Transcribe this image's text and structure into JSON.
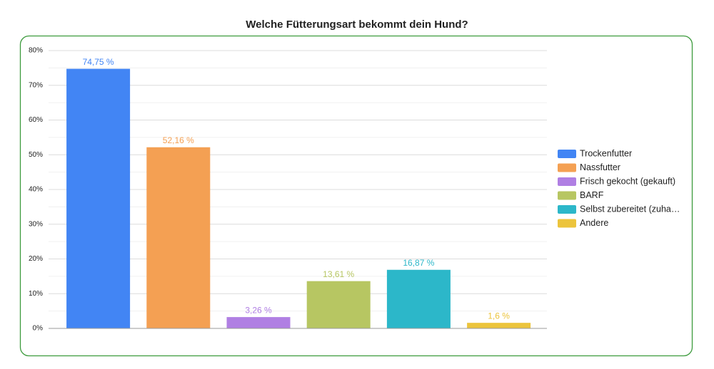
{
  "chart_data": {
    "type": "bar",
    "title": "Welche Fütterungsart bekommt dein Hund?",
    "categories": [
      "Trockenfutter",
      "Nassfutter",
      "Frisch gekocht (gekauft)",
      "BARF",
      "Selbst zubereitet (zuha…",
      "Andere"
    ],
    "values": [
      74.75,
      52.16,
      3.26,
      13.61,
      16.87,
      1.6
    ],
    "value_labels": [
      "74,75 %",
      "52,16 %",
      "3,26 %",
      "13,61 %",
      "16,87 %",
      "1,6 %"
    ],
    "colors": [
      "#4285f4",
      "#f4a053",
      "#b07fe3",
      "#b7c662",
      "#2cb7c9",
      "#ecc43c"
    ],
    "ylim": [
      0,
      80
    ],
    "yticks": [
      {
        "value": 0,
        "label": "0%"
      },
      {
        "value": 10,
        "label": "10%"
      },
      {
        "value": 20,
        "label": "20%"
      },
      {
        "value": 30,
        "label": "30%"
      },
      {
        "value": 40,
        "label": "40%"
      },
      {
        "value": 50,
        "label": "50%"
      },
      {
        "value": 60,
        "label": "60%"
      },
      {
        "value": 70,
        "label": "70%"
      },
      {
        "value": 80,
        "label": "80%"
      }
    ],
    "minor_yticks": [
      5,
      15,
      25,
      35,
      45,
      55,
      65,
      75
    ],
    "grid": true,
    "legend": "right"
  }
}
